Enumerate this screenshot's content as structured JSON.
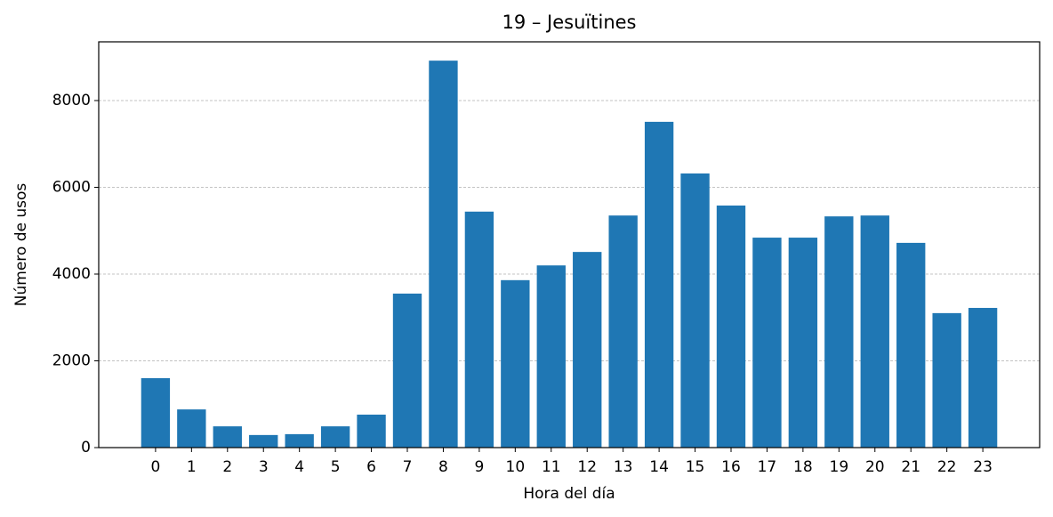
{
  "chart_data": {
    "type": "bar",
    "title": "19 – Jesuïtines",
    "x_label": "Hora del día",
    "y_label": "Número de usos",
    "categories": [
      "0",
      "1",
      "2",
      "3",
      "4",
      "5",
      "6",
      "7",
      "8",
      "9",
      "10",
      "11",
      "12",
      "13",
      "14",
      "15",
      "16",
      "17",
      "18",
      "19",
      "20",
      "21",
      "22",
      "23"
    ],
    "values": [
      1600,
      880,
      490,
      290,
      310,
      490,
      760,
      3550,
      8920,
      5440,
      3860,
      4200,
      4510,
      5350,
      7510,
      6320,
      5580,
      4840,
      4840,
      5330,
      5350,
      4720,
      3100,
      3220
    ],
    "color": "#1f77b4",
    "ylim": [
      0,
      9354
    ],
    "yticks": [
      0,
      2000,
      4000,
      6000,
      8000
    ],
    "grid": true
  }
}
